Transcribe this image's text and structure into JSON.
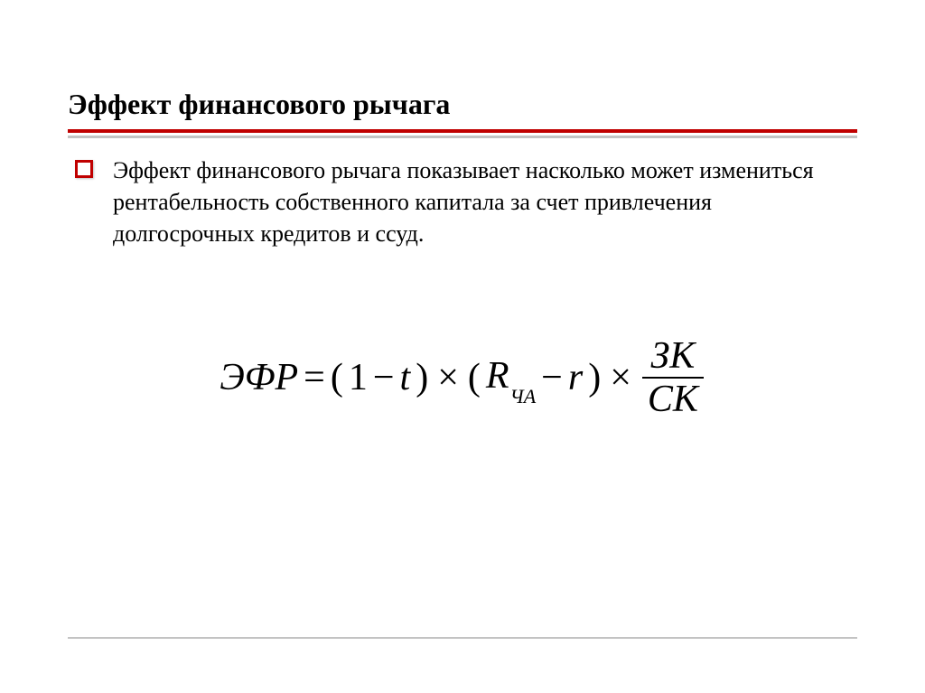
{
  "colors": {
    "accent": "#c00000",
    "divider_gray": "#c3c3c3",
    "background": "#ffffff",
    "text": "#000000"
  },
  "heading": {
    "text": "Эффект финансового рычага",
    "font_size": 32,
    "font_weight": "bold"
  },
  "body": {
    "bullet_text": "Эффект финансового рычага показывает насколько может измениться рентабельность собственного капитала за счет привлечения долгосрочных кредитов и ссуд.",
    "font_size": 26
  },
  "formula": {
    "font_size": 42,
    "font_style": "italic",
    "lhs": "ЭФР",
    "eq": "=",
    "open1": "(",
    "one": "1",
    "minus": "−",
    "t": "t",
    "close1": ")",
    "times": "×",
    "open2": "(",
    "R": "R",
    "R_sub": "ЧА",
    "r": "r",
    "close2": ")",
    "frac_num": "ЗК",
    "frac_den": "СК"
  }
}
